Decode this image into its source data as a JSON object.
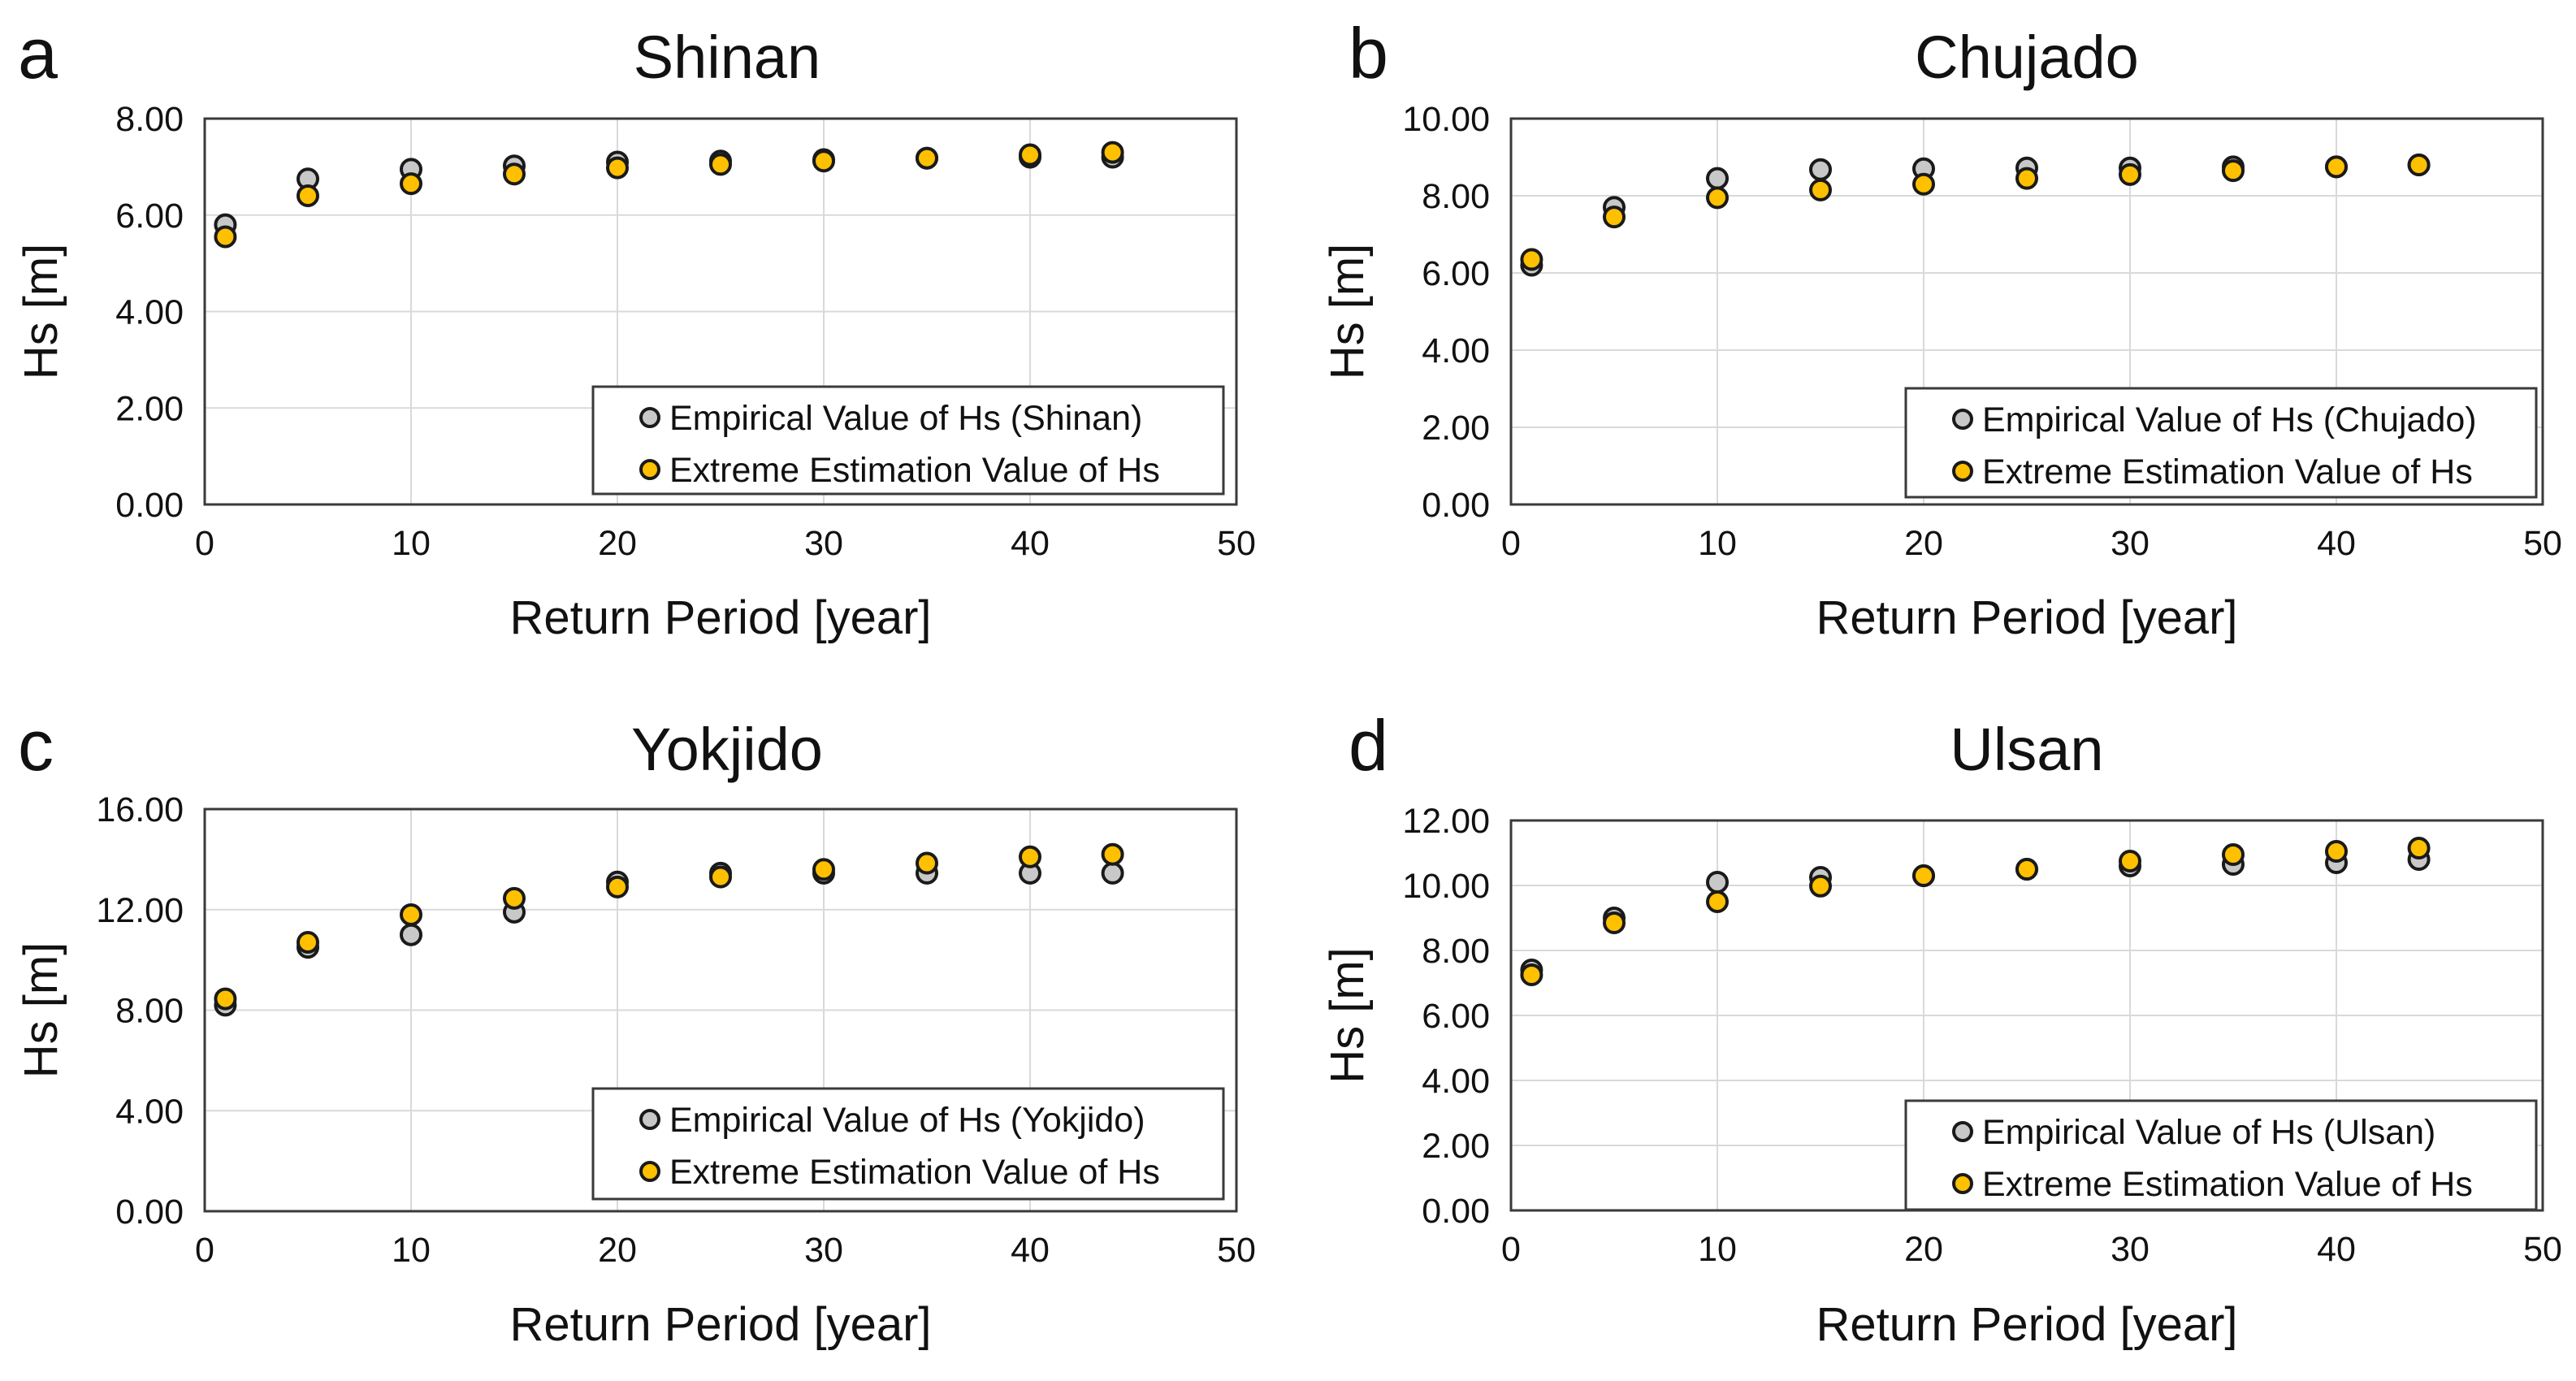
{
  "colors": {
    "empirical_fill": "#c8c8c8",
    "estimate_fill": "#ffc000",
    "marker_stroke": "#1a1a1a",
    "grid": "#d9d9d9",
    "frame": "#3a3a3a"
  },
  "chart_data": [
    {
      "type": "scatter",
      "panel_letter": "a",
      "title": "Shinan",
      "xlabel": "Return Period [year]",
      "ylabel": "Hs [m]",
      "xlim": [
        0,
        50
      ],
      "ylim": [
        0,
        8
      ],
      "x_ticks": [
        "0",
        "10",
        "20",
        "30",
        "40",
        "50"
      ],
      "y_ticks": [
        "0.00",
        "2.00",
        "4.00",
        "6.00",
        "8.00"
      ],
      "legend_position": "bottom-right",
      "grid": true,
      "x": [
        1,
        5,
        10,
        15,
        20,
        25,
        30,
        35,
        40,
        44
      ],
      "series": [
        {
          "name": "Empirical Value of Hs (Shinan)",
          "key": "empirical",
          "values": [
            5.8,
            6.75,
            6.95,
            7.02,
            7.1,
            7.12,
            7.15,
            7.18,
            7.2,
            7.2
          ]
        },
        {
          "name": "Extreme Estimation Value of Hs",
          "key": "estimate",
          "values": [
            5.55,
            6.4,
            6.65,
            6.85,
            6.98,
            7.05,
            7.12,
            7.18,
            7.25,
            7.3
          ]
        }
      ]
    },
    {
      "type": "scatter",
      "panel_letter": "b",
      "title": "Chujado",
      "xlabel": "Return Period [year]",
      "ylabel": "Hs [m]",
      "xlim": [
        0,
        50
      ],
      "ylim": [
        0,
        10
      ],
      "x_ticks": [
        "0",
        "10",
        "20",
        "30",
        "40",
        "50"
      ],
      "y_ticks": [
        "0.00",
        "2.00",
        "4.00",
        "6.00",
        "8.00",
        "10.00"
      ],
      "legend_position": "bottom-right",
      "grid": true,
      "x": [
        1,
        5,
        10,
        15,
        20,
        25,
        30,
        35,
        40,
        44
      ],
      "series": [
        {
          "name": "Empirical Value of Hs (Chujado)",
          "key": "empirical",
          "values": [
            6.2,
            7.7,
            8.45,
            8.68,
            8.7,
            8.72,
            8.72,
            8.75,
            8.75,
            8.8
          ]
        },
        {
          "name": "Extreme Estimation Value of Hs",
          "key": "estimate",
          "values": [
            6.35,
            7.45,
            7.95,
            8.15,
            8.3,
            8.45,
            8.55,
            8.65,
            8.75,
            8.8
          ]
        }
      ]
    },
    {
      "type": "scatter",
      "panel_letter": "c",
      "title": "Yokjido",
      "xlabel": "Return Period [year]",
      "ylabel": "Hs [m]",
      "xlim": [
        0,
        50
      ],
      "ylim": [
        0,
        16
      ],
      "x_ticks": [
        "0",
        "10",
        "20",
        "30",
        "40",
        "50"
      ],
      "y_ticks": [
        "0.00",
        "4.00",
        "8.00",
        "12.00",
        "16.00"
      ],
      "legend_position": "bottom-right",
      "grid": true,
      "x": [
        1,
        5,
        10,
        15,
        20,
        25,
        30,
        35,
        40,
        44
      ],
      "series": [
        {
          "name": "Empirical Value of Hs (Yokjido)",
          "key": "empirical",
          "values": [
            8.2,
            10.5,
            11.0,
            11.9,
            13.1,
            13.45,
            13.45,
            13.45,
            13.45,
            13.45
          ]
        },
        {
          "name": "Extreme Estimation Value of Hs",
          "key": "estimate",
          "values": [
            8.45,
            10.7,
            11.8,
            12.45,
            12.9,
            13.3,
            13.6,
            13.85,
            14.1,
            14.2
          ]
        }
      ]
    },
    {
      "type": "scatter",
      "panel_letter": "d",
      "title": "Ulsan",
      "xlabel": "Return Period [year]",
      "ylabel": "Hs [m]",
      "xlim": [
        0,
        50
      ],
      "ylim": [
        0,
        12
      ],
      "x_ticks": [
        "0",
        "10",
        "20",
        "30",
        "40",
        "50"
      ],
      "y_ticks": [
        "0.00",
        "2.00",
        "4.00",
        "6.00",
        "8.00",
        "10.00",
        "12.00"
      ],
      "legend_position": "bottom-right",
      "grid": true,
      "x": [
        1,
        5,
        10,
        15,
        20,
        25,
        30,
        35,
        40,
        44
      ],
      "series": [
        {
          "name": "Empirical Value of Hs (Ulsan)",
          "key": "empirical",
          "values": [
            7.4,
            9.0,
            10.1,
            10.25,
            10.3,
            10.5,
            10.6,
            10.65,
            10.7,
            10.8
          ]
        },
        {
          "name": "Extreme Estimation Value of Hs",
          "key": "estimate",
          "values": [
            7.25,
            8.85,
            9.5,
            9.98,
            10.3,
            10.5,
            10.75,
            10.95,
            11.05,
            11.15
          ]
        }
      ]
    }
  ]
}
